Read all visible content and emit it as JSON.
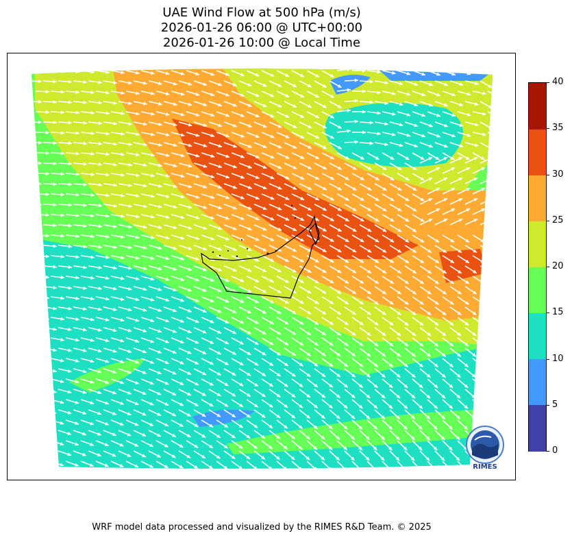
{
  "title": {
    "line1": "UAE Wind Flow at 500 hPa (m/s)",
    "line2": "2026-01-26 06:00 @ UTC+00:00",
    "line3": "2026-01-26 10:00 @ Local Time"
  },
  "colorbar": {
    "levels": [
      {
        "min": 0,
        "max": 5,
        "color": "#4040a8"
      },
      {
        "min": 5,
        "max": 10,
        "color": "#4499ff"
      },
      {
        "min": 10,
        "max": 15,
        "color": "#1ddfc2"
      },
      {
        "min": 15,
        "max": 20,
        "color": "#66ff55"
      },
      {
        "min": 20,
        "max": 25,
        "color": "#cfe92f"
      },
      {
        "min": 25,
        "max": 30,
        "color": "#ffaa33"
      },
      {
        "min": 30,
        "max": 35,
        "color": "#ea5211"
      },
      {
        "min": 35,
        "max": 40,
        "color": "#a81600"
      }
    ],
    "ticks": [
      "0",
      "5",
      "10",
      "15",
      "20",
      "25",
      "30",
      "35",
      "40"
    ]
  },
  "logo": {
    "text": "RIMES"
  },
  "footer": "WRF model data processed and visualized by the RIMES R&D Team. © 2025",
  "colors": {
    "arrow": "#ffffff",
    "border": "#000000"
  }
}
